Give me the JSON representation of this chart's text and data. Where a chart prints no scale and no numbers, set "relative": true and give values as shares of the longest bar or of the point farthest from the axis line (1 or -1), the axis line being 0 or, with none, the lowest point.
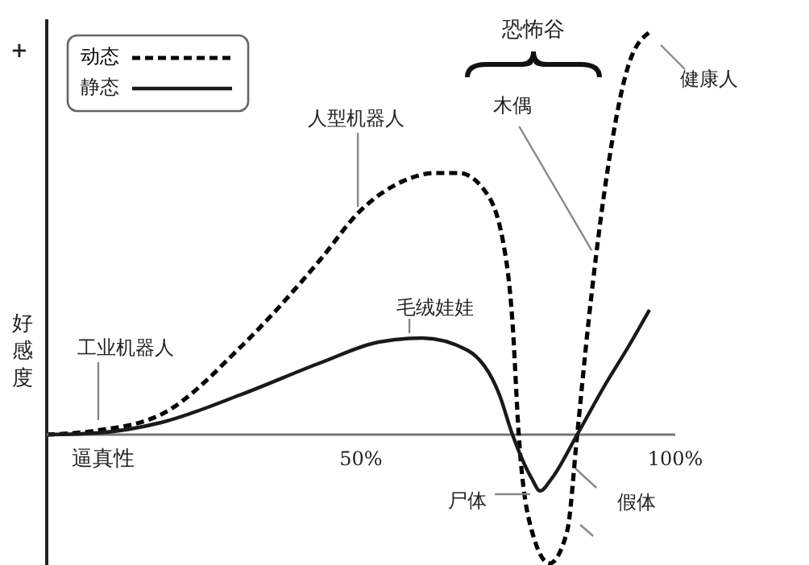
{
  "chart_data": {
    "type": "line",
    "relative": true,
    "xlabel": "逼真性",
    "ylabel": "好感度",
    "legend": "top left",
    "xlim": [
      0,
      100
    ],
    "xticks": [
      {
        "value": 50,
        "label": "50%"
      },
      {
        "value": 100,
        "label": "100%"
      }
    ],
    "series": [
      {
        "name": "动态",
        "color": "#000000",
        "line_style": "dashed",
        "x": [
          0,
          7.9,
          18.2,
          31,
          43.8,
          49.5,
          56.7,
          61.8,
          65.6,
          69.5,
          72.6,
          74.1,
          75.1,
          77.2,
          80,
          82.8,
          84.4,
          86.2,
          88.7,
          92.6,
          95.9
        ],
        "values": [
          0,
          0.01,
          0.05,
          0.22,
          0.44,
          0.55,
          0.63,
          0.65,
          0.65,
          0.61,
          0.48,
          0.28,
          0,
          -0.24,
          -0.32,
          -0.24,
          0,
          0.28,
          0.6,
          0.92,
          1.0
        ]
      },
      {
        "name": "静态",
        "color": "#1a1a1a",
        "line_style": "solid",
        "x": [
          0,
          7.9,
          18.2,
          31,
          43.8,
          52.8,
          59.7,
          66.9,
          72,
          74.1,
          77.2,
          78.5,
          80.3,
          84.4,
          88.7,
          92.6,
          95.9
        ],
        "values": [
          0,
          0.004,
          0.03,
          0.1,
          0.18,
          0.23,
          0.24,
          0.21,
          0.1,
          0,
          -0.11,
          -0.14,
          -0.11,
          0,
          0.12,
          0.22,
          0.31
        ]
      }
    ],
    "annotations": [
      {
        "text": "工业机器人",
        "x": 8.2,
        "y": 0.02
      },
      {
        "text": "人型机器人",
        "x": 49.5,
        "y": 0.55
      },
      {
        "text": "毛绒娃娃",
        "x": 57.7,
        "y": 0.24
      },
      {
        "text": "木偶",
        "x": 86.7,
        "y": 0.45
      },
      {
        "text": "健康人",
        "x": 95.9,
        "y": 1.0
      },
      {
        "text": "尸体",
        "x": 77.7,
        "y": -0.14
      },
      {
        "text": "假体",
        "x": 83.6,
        "y": -0.08
      },
      "恐怖谷",
      "+"
    ]
  }
}
